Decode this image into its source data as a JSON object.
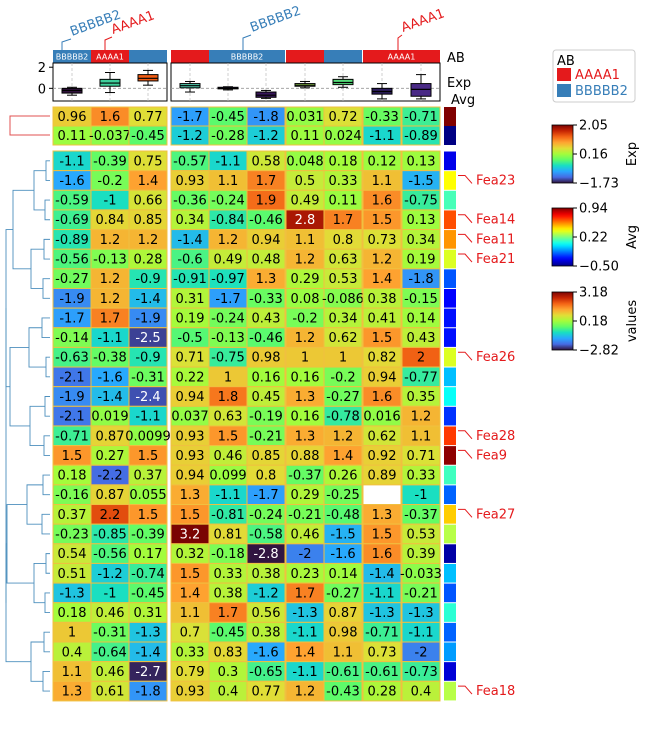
{
  "chart_data": {
    "type": "heatmap",
    "group_labels": [
      "BBBBB2",
      "AAAA1",
      "BBBBB2",
      "AAAA1"
    ],
    "ab_segments": [
      {
        "group": "BBBBB2",
        "cols": [
          0,
          0
        ],
        "label": "BBBBB2"
      },
      {
        "group": "AAAA1",
        "cols": [
          1,
          1
        ],
        "label": "AAAA1"
      },
      {
        "group": "BBBBB2",
        "cols": [
          2,
          2
        ],
        "label": ""
      },
      {
        "group": "AAAA1",
        "cols": [
          3,
          3
        ],
        "label": ""
      },
      {
        "group": "BBBBB2",
        "cols": [
          4,
          5
        ],
        "label": "BBBBB2"
      },
      {
        "group": "AAAA1",
        "cols": [
          6,
          6
        ],
        "label": ""
      },
      {
        "group": "BBBBB2",
        "cols": [
          7,
          7
        ],
        "label": ""
      },
      {
        "group": "AAAA1",
        "cols": [
          8,
          9
        ],
        "label": "AAAA1"
      }
    ],
    "annotation_labels": {
      "ab": "AB",
      "exp": "Exp",
      "avg": "Avg"
    },
    "exp_axis": {
      "ticks": [
        "2",
        "0"
      ],
      "tick_values": [
        2,
        0
      ],
      "range": [
        -1.2,
        2.4
      ]
    },
    "boxplots": [
      {
        "q1": -0.45,
        "med": -0.2,
        "q3": 0.0,
        "lo": -0.65,
        "hi": 0.1,
        "color": "#30123b"
      },
      {
        "q1": 0.2,
        "med": 0.5,
        "q3": 0.85,
        "lo": -0.4,
        "hi": 1.5,
        "color": "#3ecf9b"
      },
      {
        "q1": 0.7,
        "med": 0.95,
        "q3": 1.3,
        "lo": 0.3,
        "hi": 1.7,
        "color": "#f05b12"
      },
      {
        "q1": 0.05,
        "med": 0.25,
        "q3": 0.45,
        "lo": -0.35,
        "hi": 0.65,
        "color": "#4fc5a8"
      },
      {
        "q1": -0.05,
        "med": 0.0,
        "q3": 0.1,
        "lo": -0.15,
        "hi": 0.15,
        "color": "#3d2a6e"
      },
      {
        "q1": -0.85,
        "med": -0.65,
        "q3": -0.35,
        "lo": -0.95,
        "hi": -0.2,
        "color": "#37165a"
      },
      {
        "q1": 0.2,
        "med": 0.3,
        "q3": 0.45,
        "lo": 0.05,
        "hi": 0.65,
        "color": "#a7e65a"
      },
      {
        "q1": 0.35,
        "med": 0.55,
        "q3": 0.85,
        "lo": 0.1,
        "hi": 1.1,
        "color": "#55dc7a"
      },
      {
        "q1": -0.55,
        "med": -0.3,
        "q3": 0.0,
        "lo": -1.0,
        "hi": 0.45,
        "color": "#2d1e5e"
      },
      {
        "q1": -0.75,
        "med": -0.1,
        "q3": 0.45,
        "lo": -1.0,
        "hi": 1.3,
        "color": "#4a2a86"
      }
    ],
    "col_group_split_after": 2,
    "top_rows": [
      [
        0.96,
        1.6,
        0.77,
        -1.7,
        -0.45,
        -1.8,
        0.031,
        0.72,
        -0.33,
        -0.71
      ],
      [
        0.11,
        -0.037,
        -0.45,
        -1.2,
        -0.28,
        -1.2,
        0.11,
        0.024,
        -1.1,
        -0.89
      ]
    ],
    "top_row_avg": [
      0.94,
      -0.5
    ],
    "rows": [
      {
        "label": "",
        "values": [
          -1.1,
          -0.39,
          0.75,
          -0.57,
          -1.1,
          0.58,
          0.048,
          0.18,
          0.12,
          0.13
        ],
        "avg": -0.35
      },
      {
        "label": "Fea23",
        "values": [
          -1.6,
          -0.2,
          1.4,
          0.93,
          1.1,
          1.7,
          0.5,
          0.33,
          1.1,
          -1.5
        ],
        "avg": 0.4
      },
      {
        "label": "",
        "values": [
          -0.59,
          -1,
          0.66,
          -0.36,
          -0.24,
          1.9,
          0.49,
          0.11,
          1.6,
          -0.75
        ],
        "avg": 0.14
      },
      {
        "label": "Fea14",
        "values": [
          -0.69,
          0.84,
          0.85,
          0.34,
          -0.84,
          -0.46,
          2.8,
          1.7,
          1.5,
          0.13
        ],
        "avg": 0.65
      },
      {
        "label": "Fea11",
        "values": [
          -0.89,
          1.2,
          1.2,
          -1.4,
          1.2,
          0.94,
          1.1,
          0.8,
          0.73,
          0.34
        ],
        "avg": 0.55
      },
      {
        "label": "Fea21",
        "values": [
          -0.56,
          -0.13,
          0.28,
          -0.6,
          0.49,
          0.48,
          1.2,
          0.63,
          1.2,
          0.19
        ],
        "avg": 0.35
      },
      {
        "label": "",
        "values": [
          -0.27,
          1.2,
          -0.9,
          -0.91,
          -0.97,
          1.3,
          0.29,
          0.53,
          1.4,
          -1.8
        ],
        "avg": -0.2
      },
      {
        "label": "",
        "values": [
          -1.9,
          1.2,
          -1.4,
          0.31,
          -1.7,
          -0.33,
          0.08,
          -0.086,
          0.38,
          -0.15
        ],
        "avg": -0.32
      },
      {
        "label": "",
        "values": [
          -1.7,
          1.7,
          -1.9,
          0.19,
          -0.24,
          0.43,
          -0.2,
          0.34,
          0.41,
          0.14
        ],
        "avg": -0.3
      },
      {
        "label": "",
        "values": [
          -0.14,
          -1.1,
          -2.5,
          -0.5,
          -0.13,
          -0.46,
          1.2,
          0.62,
          1.5,
          0.43
        ],
        "avg": -0.3
      },
      {
        "label": "Fea26",
        "values": [
          -0.63,
          -0.38,
          -0.9,
          0.71,
          -0.75,
          0.98,
          1,
          1,
          0.82,
          2
        ],
        "avg": 0.35
      },
      {
        "label": "",
        "values": [
          -2.1,
          -1.6,
          -0.31,
          0.22,
          1,
          0.16,
          0.16,
          -0.2,
          0.94,
          -0.77
        ],
        "avg": -0.05
      },
      {
        "label": "",
        "values": [
          -1.9,
          -1.4,
          -2.4,
          0.94,
          1.8,
          0.45,
          1.3,
          -0.27,
          1.6,
          0.35
        ],
        "avg": 0.05
      },
      {
        "label": "",
        "values": [
          -2.1,
          0.019,
          -1.1,
          0.037,
          0.63,
          -0.19,
          0.16,
          -0.78,
          0.016,
          1.2
        ],
        "avg": -0.25
      },
      {
        "label": "Fea28",
        "values": [
          -0.71,
          0.87,
          0.0099,
          0.93,
          1.5,
          -0.21,
          1.3,
          1.2,
          0.62,
          1.1
        ],
        "avg": 0.68
      },
      {
        "label": "Fea9",
        "values": [
          1.5,
          0.27,
          1.5,
          0.93,
          0.46,
          0.85,
          0.88,
          1.4,
          0.92,
          0.71
        ],
        "avg": 0.92
      },
      {
        "label": "",
        "values": [
          0.18,
          -2.2,
          0.37,
          0.94,
          0.099,
          0.8,
          -0.37,
          0.26,
          0.89,
          0.33
        ],
        "avg": 0.13
      },
      {
        "label": "",
        "values": [
          -0.16,
          0.87,
          0.055,
          1.3,
          -1.1,
          -1.7,
          0.29,
          -0.25,
          null,
          -1
        ],
        "avg": -0.18
      },
      {
        "label": "Fea27",
        "values": [
          0.37,
          2.2,
          1.5,
          1.5,
          -0.81,
          -0.24,
          -0.21,
          -0.48,
          1.3,
          -0.37
        ],
        "avg": 0.47
      },
      {
        "label": "",
        "values": [
          -0.23,
          -0.85,
          -0.39,
          3.2,
          0.81,
          -0.58,
          0.46,
          -1.5,
          1.5,
          0.53
        ],
        "avg": 0.3
      },
      {
        "label": "",
        "values": [
          0.54,
          -0.56,
          0.17,
          0.32,
          -0.18,
          -2.8,
          -2,
          -1.6,
          1.6,
          0.39
        ],
        "avg": -0.45
      },
      {
        "label": "",
        "values": [
          0.51,
          -1.2,
          -0.74,
          1.5,
          0.33,
          0.38,
          0.23,
          0.14,
          -1.4,
          -0.033
        ],
        "avg": -0.05
      },
      {
        "label": "",
        "values": [
          -1.3,
          -1,
          -0.45,
          1.4,
          0.38,
          -1.2,
          1.7,
          -0.27,
          -1.1,
          -0.21
        ],
        "avg": -0.2
      },
      {
        "label": "",
        "values": [
          0.18,
          0.46,
          0.31,
          1.1,
          1.7,
          0.56,
          -1.3,
          0.87,
          -1.3,
          -1.3
        ],
        "avg": 0.1
      },
      {
        "label": "",
        "values": [
          1,
          -0.31,
          -1.3,
          0.7,
          -0.45,
          0.38,
          -1.1,
          0.98,
          -0.71,
          -1.1
        ],
        "avg": -0.18
      },
      {
        "label": "",
        "values": [
          0.4,
          -0.64,
          -1.4,
          0.33,
          0.83,
          -1.6,
          1.4,
          1.1,
          0.73,
          -2
        ],
        "avg": -0.1
      },
      {
        "label": "",
        "values": [
          1.1,
          0.46,
          -2.7,
          0.79,
          0.3,
          -0.65,
          -1.1,
          -0.61,
          -0.61,
          -0.73
        ],
        "avg": -0.38
      },
      {
        "label": "Fea18",
        "values": [
          1.3,
          0.61,
          -1.8,
          0.93,
          0.4,
          0.77,
          1.2,
          -0.43,
          0.28,
          0.4
        ],
        "avg": 0.3
      }
    ],
    "legend": {
      "title": "AB",
      "entries": [
        {
          "name": "AAAA1",
          "color": "#e41a1c"
        },
        {
          "name": "BBBBB2",
          "color": "#377eb8"
        }
      ]
    },
    "colorbars": [
      {
        "label": "Exp",
        "ticks": [
          "2.05",
          "0.16",
          "−1.73"
        ],
        "min": -1.73,
        "max": 2.05,
        "cmap": "turbo"
      },
      {
        "label": "Avg",
        "ticks": [
          "0.94",
          "0.22",
          "−0.50"
        ],
        "min": -0.5,
        "max": 0.94,
        "cmap": "jet"
      },
      {
        "label": "values",
        "ticks": [
          "3.18",
          "0.18",
          "−2.82"
        ],
        "min": -2.82,
        "max": 3.18,
        "cmap": "turbo"
      }
    ],
    "colors": {
      "AAAA1": "#e41a1c",
      "BBBBB2": "#377eb8",
      "dendrogram": "#4c8fbd",
      "top_dendrogram": "#e05050",
      "cell_border": "#f0c040"
    }
  }
}
